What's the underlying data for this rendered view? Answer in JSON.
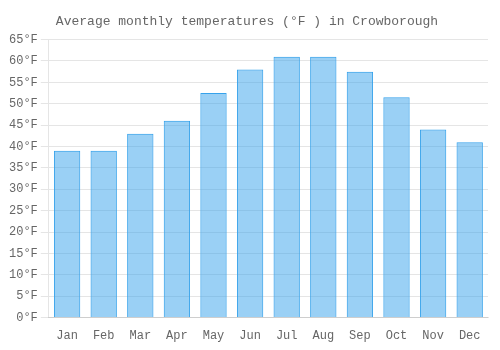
{
  "chart_data": {
    "type": "bar",
    "title": "Average monthly temperatures (°F ) in Crowborough",
    "categories": [
      "Jan",
      "Feb",
      "Mar",
      "Apr",
      "May",
      "Jun",
      "Jul",
      "Aug",
      "Sep",
      "Oct",
      "Nov",
      "Dec"
    ],
    "values": [
      39,
      39,
      43,
      46,
      52.5,
      58,
      61,
      61,
      57.5,
      51.5,
      44,
      41
    ],
    "ylim": [
      0,
      65
    ],
    "yticks": [
      {
        "value": 0,
        "label": "0°F"
      },
      {
        "value": 5,
        "label": "5°F"
      },
      {
        "value": 10,
        "label": "10°F"
      },
      {
        "value": 15,
        "label": "15°F"
      },
      {
        "value": 20,
        "label": "20°F"
      },
      {
        "value": 25,
        "label": "25°F"
      },
      {
        "value": 30,
        "label": "30°F"
      },
      {
        "value": 35,
        "label": "35°F"
      },
      {
        "value": 40,
        "label": "40°F"
      },
      {
        "value": 45,
        "label": "45°F"
      },
      {
        "value": 50,
        "label": "50°F"
      },
      {
        "value": 55,
        "label": "55°F"
      },
      {
        "value": 60,
        "label": "60°F"
      },
      {
        "value": 65,
        "label": "65°F"
      }
    ],
    "grid": true
  }
}
